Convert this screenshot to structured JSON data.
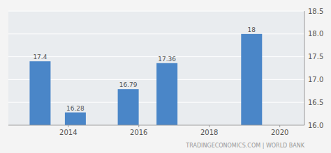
{
  "chart_data": {
    "type": "bar",
    "x": [
      2013.2,
      2014.2,
      2015.7,
      2016.8,
      2019.2
    ],
    "values": [
      17.4,
      16.28,
      16.79,
      17.36,
      18.0
    ],
    "value_labels": [
      "17.4",
      "16.28",
      "16.79",
      "17.36",
      "18"
    ],
    "color": "#4a86c8",
    "xlim": [
      2012.3,
      2020.7
    ],
    "ylim": [
      16.0,
      18.5
    ],
    "xticks": [
      2014,
      2016,
      2018,
      2020
    ],
    "yticks": [
      {
        "value": 16.0,
        "label": "16.0"
      },
      16.5,
      {
        "value": 17.0,
        "label": "17.0"
      },
      17.5,
      {
        "value": 18.0,
        "label": "18.0"
      },
      18.5
    ],
    "grid": true,
    "data_labels": true,
    "annotations": [
      "TRADINGECONOMICS.COM | WORLD BANK"
    ]
  }
}
